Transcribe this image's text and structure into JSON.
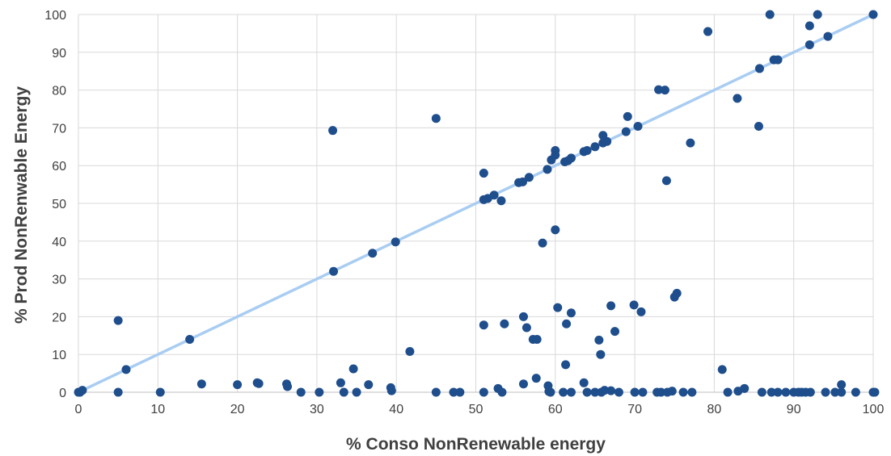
{
  "chart_data": {
    "type": "scatter",
    "xlabel": "% Conso NonRenewable energy",
    "ylabel": "% Prod NonRenwable Energy",
    "xlim": [
      0,
      100
    ],
    "ylim": [
      0,
      100
    ],
    "x_ticks": [
      "0",
      "10",
      "20",
      "30",
      "40",
      "50",
      "60",
      "70",
      "80",
      "90",
      "100"
    ],
    "y_ticks": [
      "0",
      "10",
      "20",
      "30",
      "40",
      "50",
      "60",
      "70",
      "80",
      "90",
      "100"
    ],
    "grid": true,
    "legend": "none",
    "point_color": "#1f4e8c",
    "line_color": "#a9cdf2",
    "reference_line": [
      [
        0,
        0
      ],
      [
        100,
        100
      ]
    ],
    "points": [
      [
        0,
        0
      ],
      [
        0.2,
        0
      ],
      [
        0.5,
        0.5
      ],
      [
        5,
        19
      ],
      [
        5,
        0
      ],
      [
        6,
        6
      ],
      [
        10.3,
        0
      ],
      [
        14,
        14
      ],
      [
        15.5,
        2.2
      ],
      [
        20,
        2
      ],
      [
        22.5,
        2.5
      ],
      [
        22.7,
        2.3
      ],
      [
        26.2,
        2.2
      ],
      [
        26.3,
        1.5
      ],
      [
        28,
        0
      ],
      [
        30.3,
        0
      ],
      [
        32,
        69.3
      ],
      [
        32.1,
        32
      ],
      [
        33,
        2.5
      ],
      [
        33.4,
        0
      ],
      [
        34.6,
        6.2
      ],
      [
        35,
        0
      ],
      [
        36.5,
        2
      ],
      [
        37,
        36.8
      ],
      [
        39.3,
        1.2
      ],
      [
        39.4,
        0.4
      ],
      [
        39.9,
        39.8
      ],
      [
        41.7,
        10.8
      ],
      [
        45,
        72.5
      ],
      [
        45,
        0
      ],
      [
        47.2,
        0
      ],
      [
        48,
        0
      ],
      [
        51,
        58
      ],
      [
        51,
        51
      ],
      [
        51,
        17.8
      ],
      [
        51,
        0
      ],
      [
        51.5,
        51.3
      ],
      [
        52.3,
        52.2
      ],
      [
        52.8,
        1
      ],
      [
        53.2,
        50.7
      ],
      [
        53.3,
        0
      ],
      [
        53.6,
        18.1
      ],
      [
        55.4,
        55.5
      ],
      [
        55.9,
        55.7
      ],
      [
        56,
        20
      ],
      [
        56,
        2.2
      ],
      [
        56.4,
        17.1
      ],
      [
        56.7,
        56.9
      ],
      [
        57.2,
        14
      ],
      [
        57.6,
        3.7
      ],
      [
        57.7,
        14
      ],
      [
        58.4,
        39.5
      ],
      [
        59,
        59
      ],
      [
        59.1,
        1.7
      ],
      [
        59.2,
        0.2
      ],
      [
        59.4,
        0
      ],
      [
        59.5,
        61.5
      ],
      [
        60,
        64
      ],
      [
        60,
        62.8
      ],
      [
        60,
        43
      ],
      [
        60.3,
        22.4
      ],
      [
        61,
        0
      ],
      [
        61.2,
        61
      ],
      [
        61.3,
        7.3
      ],
      [
        61.4,
        18.1
      ],
      [
        61.6,
        61.3
      ],
      [
        62,
        62
      ],
      [
        62,
        21
      ],
      [
        62,
        0
      ],
      [
        63.6,
        63.7
      ],
      [
        63.6,
        2.5
      ],
      [
        64,
        64
      ],
      [
        64,
        0
      ],
      [
        65,
        65
      ],
      [
        65,
        0
      ],
      [
        65.5,
        13.8
      ],
      [
        65.7,
        10
      ],
      [
        65.8,
        0
      ],
      [
        66,
        68
      ],
      [
        66,
        66
      ],
      [
        66.2,
        0.5
      ],
      [
        66.5,
        66.4
      ],
      [
        67,
        22.9
      ],
      [
        67,
        0.4
      ],
      [
        67.5,
        16.1
      ],
      [
        68,
        0
      ],
      [
        68.9,
        69
      ],
      [
        69.1,
        73
      ],
      [
        69.9,
        23.1
      ],
      [
        70,
        0
      ],
      [
        70.4,
        70.4
      ],
      [
        70.8,
        21.3
      ],
      [
        71,
        0
      ],
      [
        72.8,
        0
      ],
      [
        73,
        80.1
      ],
      [
        73.3,
        0
      ],
      [
        73.8,
        80
      ],
      [
        74,
        56
      ],
      [
        74.1,
        0
      ],
      [
        74.7,
        0.3
      ],
      [
        75,
        25.2
      ],
      [
        75.3,
        26.2
      ],
      [
        76.1,
        0
      ],
      [
        77,
        66
      ],
      [
        77.2,
        0
      ],
      [
        79.2,
        95.5
      ],
      [
        81,
        6
      ],
      [
        81.7,
        0
      ],
      [
        82.9,
        77.8
      ],
      [
        83,
        0.3
      ],
      [
        83.8,
        1
      ],
      [
        85.6,
        70.4
      ],
      [
        85.7,
        85.7
      ],
      [
        86,
        0
      ],
      [
        87,
        100
      ],
      [
        87.2,
        0
      ],
      [
        87.5,
        88
      ],
      [
        88,
        88
      ],
      [
        88,
        0
      ],
      [
        89,
        0
      ],
      [
        90,
        0
      ],
      [
        90.6,
        0
      ],
      [
        91,
        0
      ],
      [
        91.5,
        0
      ],
      [
        92,
        97
      ],
      [
        92,
        92
      ],
      [
        92.1,
        0
      ],
      [
        93,
        100
      ],
      [
        94,
        0
      ],
      [
        94.3,
        94.2
      ],
      [
        95.2,
        0
      ],
      [
        96,
        2
      ],
      [
        96,
        0
      ],
      [
        97.8,
        0
      ],
      [
        100,
        100
      ],
      [
        100,
        0
      ],
      [
        100.2,
        0
      ]
    ]
  }
}
